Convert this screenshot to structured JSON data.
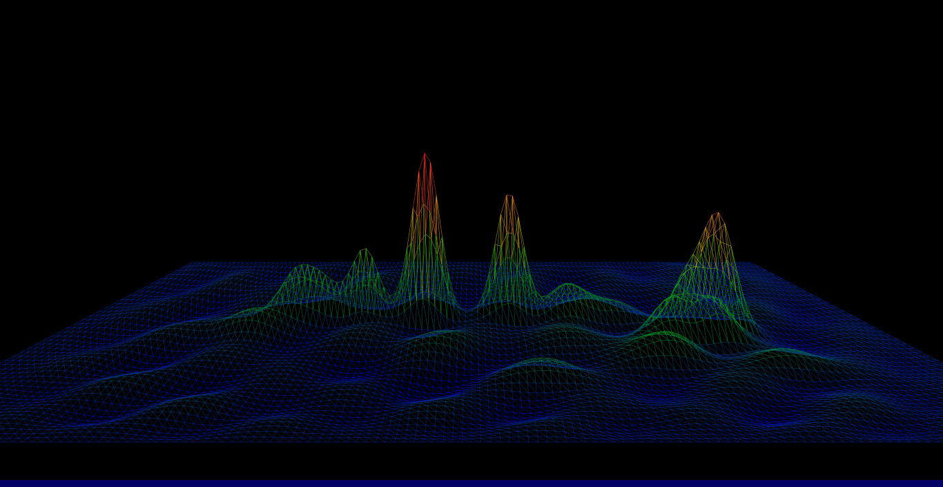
{
  "scene": {
    "render_style": "wireframe",
    "background_color": "#000000",
    "color_ramp": [
      "#0000c8",
      "#008c1e",
      "#1eaa14",
      "#c8aa14",
      "#ff6a1e",
      "#ff1428"
    ],
    "peaks": [
      {
        "name": "tallest-peak",
        "relative_height": 1.0
      },
      {
        "name": "second-peak",
        "relative_height": 0.78
      },
      {
        "name": "right-peak",
        "relative_height": 0.72
      },
      {
        "name": "left-spire",
        "relative_height": 0.45
      }
    ]
  },
  "bottom_bar": {
    "color": "#000066"
  }
}
